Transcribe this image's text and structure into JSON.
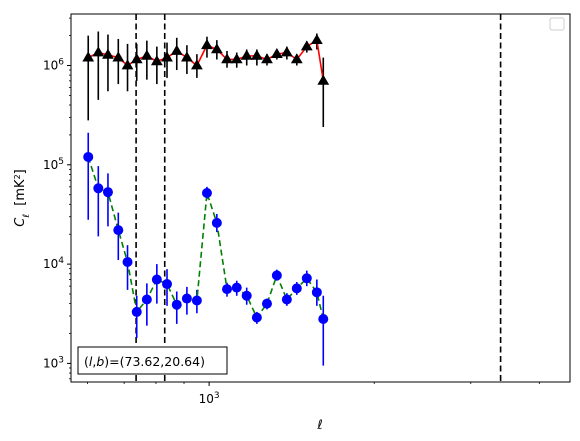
{
  "chart_data": {
    "type": "line",
    "title": "",
    "xlabel": "ℓ",
    "ylabel": "C_ℓ  [mK²]",
    "xscale": "log",
    "yscale": "log",
    "xlim": [
      560,
      4550
    ],
    "ylim": [
      650,
      3300000
    ],
    "x_ticks": [
      {
        "value": 1000,
        "base": "10",
        "exp": "3"
      }
    ],
    "y_ticks": [
      {
        "value": 1000,
        "base": "10",
        "exp": "3"
      },
      {
        "value": 10000,
        "base": "10",
        "exp": "4"
      },
      {
        "value": 100000,
        "base": "10",
        "exp": "5"
      },
      {
        "value": 1000000,
        "base": "10",
        "exp": "6"
      }
    ],
    "annotation": "(l,b)=(73.62,20.64)",
    "vlines": [
      736,
      830,
      3400
    ],
    "legend": {
      "placement": "top-right",
      "entries": []
    },
    "series": [
      {
        "color": "#ff0000",
        "marker": "triangle",
        "marker_color": "#000000",
        "linestyle": "solid",
        "points": [
          {
            "x": 602,
            "y": 1200000,
            "lo": 280000,
            "hi": 2000000
          },
          {
            "x": 628,
            "y": 1350000,
            "lo": 450000,
            "hi": 2200000
          },
          {
            "x": 654,
            "y": 1280000,
            "lo": 550000,
            "hi": 2050000
          },
          {
            "x": 683,
            "y": 1200000,
            "lo": 650000,
            "hi": 1850000
          },
          {
            "x": 710,
            "y": 1000000,
            "lo": 550000,
            "hi": 1650000
          },
          {
            "x": 738,
            "y": 1150000,
            "lo": 700000,
            "hi": 1650000
          },
          {
            "x": 770,
            "y": 1250000,
            "lo": 720000,
            "hi": 1780000
          },
          {
            "x": 803,
            "y": 1100000,
            "lo": 650000,
            "hi": 1550000
          },
          {
            "x": 838,
            "y": 1200000,
            "lo": 750000,
            "hi": 1700000
          },
          {
            "x": 873,
            "y": 1400000,
            "lo": 900000,
            "hi": 1900000
          },
          {
            "x": 911,
            "y": 1200000,
            "lo": 820000,
            "hi": 1600000
          },
          {
            "x": 950,
            "y": 1000000,
            "lo": 750000,
            "hi": 1300000
          },
          {
            "x": 991,
            "y": 1600000,
            "lo": 1200000,
            "hi": 1950000
          },
          {
            "x": 1033,
            "y": 1450000,
            "lo": 1150000,
            "hi": 1800000
          },
          {
            "x": 1078,
            "y": 1150000,
            "lo": 950000,
            "hi": 1400000
          },
          {
            "x": 1123,
            "y": 1150000,
            "lo": 950000,
            "hi": 1350000
          },
          {
            "x": 1171,
            "y": 1250000,
            "lo": 1000000,
            "hi": 1450000
          },
          {
            "x": 1222,
            "y": 1250000,
            "lo": 1000000,
            "hi": 1450000
          },
          {
            "x": 1275,
            "y": 1150000,
            "lo": 1000000,
            "hi": 1300000
          },
          {
            "x": 1329,
            "y": 1300000,
            "lo": 1150000,
            "hi": 1450000
          },
          {
            "x": 1386,
            "y": 1350000,
            "lo": 1150000,
            "hi": 1550000
          },
          {
            "x": 1445,
            "y": 1150000,
            "lo": 1000000,
            "hi": 1300000
          },
          {
            "x": 1507,
            "y": 1550000,
            "lo": 1350000,
            "hi": 1750000
          },
          {
            "x": 1572,
            "y": 1800000,
            "lo": 1450000,
            "hi": 2100000
          },
          {
            "x": 1615,
            "y": 700000,
            "lo": 240000,
            "hi": 1200000
          }
        ]
      },
      {
        "color": "#008000",
        "marker": "circle",
        "marker_color": "#0000ff",
        "linestyle": "dashed",
        "points": [
          {
            "x": 602,
            "y": 120000,
            "lo": 28000,
            "hi": 210000
          },
          {
            "x": 628,
            "y": 58000,
            "lo": 19000,
            "hi": 97000
          },
          {
            "x": 654,
            "y": 53000,
            "lo": 24000,
            "hi": 82000
          },
          {
            "x": 683,
            "y": 22000,
            "lo": 11000,
            "hi": 33000
          },
          {
            "x": 710,
            "y": 10500,
            "lo": 5500,
            "hi": 15500
          },
          {
            "x": 738,
            "y": 3300,
            "lo": 1800,
            "hi": 4800
          },
          {
            "x": 770,
            "y": 4400,
            "lo": 2400,
            "hi": 6400
          },
          {
            "x": 803,
            "y": 7000,
            "lo": 4000,
            "hi": 10000
          },
          {
            "x": 838,
            "y": 6300,
            "lo": 3800,
            "hi": 8900
          },
          {
            "x": 873,
            "y": 3900,
            "lo": 2500,
            "hi": 5300
          },
          {
            "x": 911,
            "y": 4500,
            "lo": 3100,
            "hi": 5900
          },
          {
            "x": 950,
            "y": 4300,
            "lo": 3200,
            "hi": 5500
          },
          {
            "x": 991,
            "y": 52000,
            "lo": 45000,
            "hi": 60000
          },
          {
            "x": 1033,
            "y": 26000,
            "lo": 21000,
            "hi": 32000
          },
          {
            "x": 1078,
            "y": 5600,
            "lo": 4700,
            "hi": 6500
          },
          {
            "x": 1123,
            "y": 5800,
            "lo": 4800,
            "hi": 6800
          },
          {
            "x": 1171,
            "y": 4800,
            "lo": 3900,
            "hi": 5800
          },
          {
            "x": 1222,
            "y": 2900,
            "lo": 2500,
            "hi": 3300
          },
          {
            "x": 1275,
            "y": 4000,
            "lo": 3500,
            "hi": 4500
          },
          {
            "x": 1329,
            "y": 7700,
            "lo": 6800,
            "hi": 8800
          },
          {
            "x": 1386,
            "y": 4400,
            "lo": 3800,
            "hi": 5100
          },
          {
            "x": 1445,
            "y": 5700,
            "lo": 4900,
            "hi": 6600
          },
          {
            "x": 1507,
            "y": 7200,
            "lo": 6000,
            "hi": 8600
          },
          {
            "x": 1572,
            "y": 5200,
            "lo": 3800,
            "hi": 7000
          },
          {
            "x": 1615,
            "y": 2800,
            "lo": 950,
            "hi": 4800
          }
        ]
      }
    ]
  }
}
